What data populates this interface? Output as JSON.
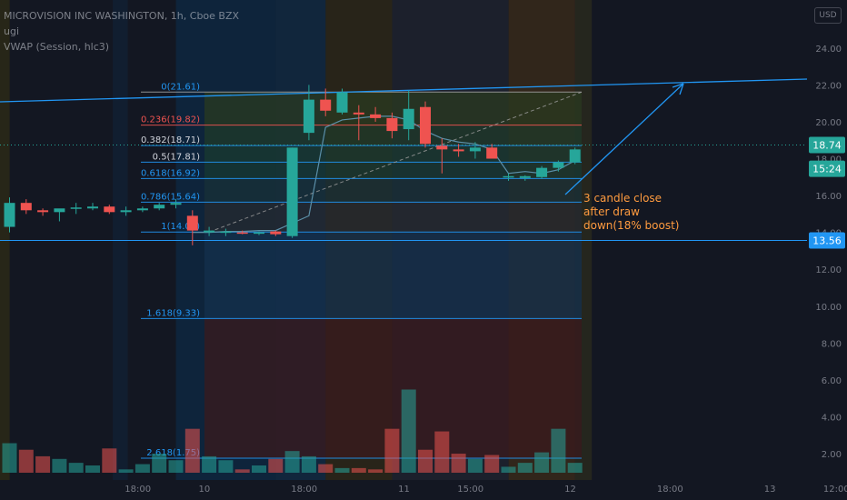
{
  "header": {
    "symbol_line": "MICROVISION INC WASHINGTON, 1h, Cboe BZX",
    "line2": "ugi",
    "line3": "VWAP (Session, hlc3)"
  },
  "unit_button": "USD",
  "annotation": [
    "3 candle close",
    "after draw",
    "down(18% boost)"
  ],
  "price_badges": [
    {
      "value": 18.74,
      "label": "18.74",
      "color": "#26a69a"
    },
    {
      "value": 17.45,
      "label": "15:24",
      "color": "#26a69a"
    },
    {
      "value": 13.56,
      "label": "13.56",
      "color": "#2196f3"
    }
  ],
  "colors": {
    "up": "#26a69a",
    "down": "#ef5350",
    "fib": "#2196f3",
    "vwap": "#5b8fa8",
    "text": "#787b86",
    "session": "#ff9800"
  },
  "chart_data": {
    "type": "candlestick",
    "y_range": [
      1.75,
      25
    ],
    "y_ticks": [
      {
        "value": 24,
        "label": "24.00"
      },
      {
        "value": 22,
        "label": "22.00"
      },
      {
        "value": 20,
        "label": "20.00"
      },
      {
        "value": 18,
        "label": "18.00"
      },
      {
        "value": 16,
        "label": "16.00"
      },
      {
        "value": 14,
        "label": "14.00"
      },
      {
        "value": 12,
        "label": "12.00"
      },
      {
        "value": 10,
        "label": "10.00"
      },
      {
        "value": 8,
        "label": "8.00"
      },
      {
        "value": 6,
        "label": "6.00"
      },
      {
        "value": 4,
        "label": "4.00"
      },
      {
        "value": 2,
        "label": "2.00"
      }
    ],
    "x_ticks": [
      {
        "index": 4,
        "label": "18:00"
      },
      {
        "index": 8,
        "label": "10"
      },
      {
        "index": 14,
        "label": "18:00"
      },
      {
        "index": 20,
        "label": "11"
      },
      {
        "index": 24,
        "label": "15:00"
      },
      {
        "index": 30,
        "label": "12"
      },
      {
        "index": 36,
        "label": "18:00"
      },
      {
        "index": 42,
        "label": "13"
      },
      {
        "index": 46,
        "label": "12:00"
      }
    ],
    "candles": [
      {
        "o": 14.3,
        "h": 15.9,
        "l": 14.0,
        "c": 15.6,
        "v": 4.2
      },
      {
        "o": 15.6,
        "h": 15.8,
        "l": 15.0,
        "c": 15.2,
        "v": 3.7
      },
      {
        "o": 15.2,
        "h": 15.3,
        "l": 14.9,
        "c": 15.1,
        "v": 3.2
      },
      {
        "o": 15.1,
        "h": 15.2,
        "l": 14.6,
        "c": 15.3,
        "v": 3.0
      },
      {
        "o": 15.3,
        "h": 15.6,
        "l": 15.0,
        "c": 15.35,
        "v": 2.7
      },
      {
        "o": 15.3,
        "h": 15.6,
        "l": 15.2,
        "c": 15.4,
        "v": 2.5
      },
      {
        "o": 15.4,
        "h": 15.5,
        "l": 15.0,
        "c": 15.1,
        "v": 3.8
      },
      {
        "o": 15.1,
        "h": 15.4,
        "l": 14.9,
        "c": 15.2,
        "v": 2.2
      },
      {
        "o": 15.2,
        "h": 15.4,
        "l": 15.1,
        "c": 15.3,
        "v": 2.6
      },
      {
        "o": 15.3,
        "h": 15.6,
        "l": 15.2,
        "c": 15.5,
        "v": 3.4
      },
      {
        "o": 15.5,
        "h": 15.8,
        "l": 15.3,
        "c": 15.6,
        "v": 2.9
      },
      {
        "o": 14.9,
        "h": 15.2,
        "l": 13.3,
        "c": 14.1,
        "v": 5.3
      },
      {
        "o": 14.0,
        "h": 14.3,
        "l": 13.8,
        "c": 14.1,
        "v": 3.2
      },
      {
        "o": 14.0,
        "h": 14.2,
        "l": 13.8,
        "c": 14.05,
        "v": 2.9
      },
      {
        "o": 14.0,
        "h": 14.1,
        "l": 13.9,
        "c": 13.95,
        "v": 2.2
      },
      {
        "o": 13.95,
        "h": 14.05,
        "l": 13.85,
        "c": 14.0,
        "v": 2.5
      },
      {
        "o": 14.05,
        "h": 14.1,
        "l": 13.8,
        "c": 13.9,
        "v": 3.0
      },
      {
        "o": 13.8,
        "h": 18.6,
        "l": 13.7,
        "c": 18.6,
        "v": 3.6
      },
      {
        "o": 19.4,
        "h": 22.0,
        "l": 19.0,
        "c": 21.2,
        "v": 3.2
      },
      {
        "o": 21.2,
        "h": 21.8,
        "l": 20.3,
        "c": 20.6,
        "v": 2.6
      },
      {
        "o": 20.5,
        "h": 21.8,
        "l": 20.4,
        "c": 21.6,
        "v": 2.3
      },
      {
        "o": 20.5,
        "h": 20.9,
        "l": 19.0,
        "c": 20.4,
        "v": 2.3
      },
      {
        "o": 20.4,
        "h": 20.8,
        "l": 20.0,
        "c": 20.2,
        "v": 2.2
      },
      {
        "o": 20.2,
        "h": 20.5,
        "l": 19.1,
        "c": 19.5,
        "v": 5.3
      },
      {
        "o": 19.6,
        "h": 21.7,
        "l": 19.0,
        "c": 20.7,
        "v": 8.3
      },
      {
        "o": 20.8,
        "h": 21.1,
        "l": 18.6,
        "c": 18.8,
        "v": 3.7
      },
      {
        "o": 18.7,
        "h": 19.1,
        "l": 17.2,
        "c": 18.5,
        "v": 5.1
      },
      {
        "o": 18.5,
        "h": 18.8,
        "l": 18.1,
        "c": 18.4,
        "v": 3.4
      },
      {
        "o": 18.4,
        "h": 18.9,
        "l": 18.0,
        "c": 18.6,
        "v": 3.0
      },
      {
        "o": 18.6,
        "h": 18.8,
        "l": 18.0,
        "c": 18.0,
        "v": 3.3
      },
      {
        "o": 17.0,
        "h": 17.2,
        "l": 16.8,
        "c": 17.05,
        "v": 2.4
      },
      {
        "o": 16.95,
        "h": 17.1,
        "l": 16.8,
        "c": 17.05,
        "v": 2.7
      },
      {
        "o": 17.0,
        "h": 17.6,
        "l": 16.9,
        "c": 17.5,
        "v": 3.5
      },
      {
        "o": 17.5,
        "h": 17.9,
        "l": 17.3,
        "c": 17.8,
        "v": 5.3
      },
      {
        "o": 17.8,
        "h": 18.6,
        "l": 17.7,
        "c": 18.5,
        "v": 2.7
      }
    ],
    "vwap": [
      null,
      null,
      null,
      null,
      null,
      null,
      null,
      null,
      null,
      null,
      null,
      14.0,
      14.0,
      14.05,
      14.05,
      14.1,
      14.1,
      14.5,
      14.9,
      19.7,
      20.1,
      20.2,
      20.3,
      20.3,
      20.1,
      19.5,
      19.1,
      18.9,
      18.8,
      18.5,
      17.2,
      17.3,
      17.2,
      17.4,
      17.9
    ],
    "fib_levels": [
      {
        "ratio_label": "0(21.61)",
        "price": 21.61
      },
      {
        "ratio_label": "0.236(19.82)",
        "price": 19.82
      },
      {
        "ratio_label": "0.382(18.71)",
        "price": 18.71
      },
      {
        "ratio_label": "0.5(17.81)",
        "price": 17.81
      },
      {
        "ratio_label": "0.618(16.92)",
        "price": 16.92
      },
      {
        "ratio_label": "0.786(15.64)",
        "price": 15.64
      },
      {
        "ratio_label": "1(14.02)",
        "price": 14.02
      },
      {
        "ratio_label": "1.618(9.33)",
        "price": 9.33
      },
      {
        "ratio_label": "2.618(1.75)",
        "price": 1.75
      }
    ]
  }
}
